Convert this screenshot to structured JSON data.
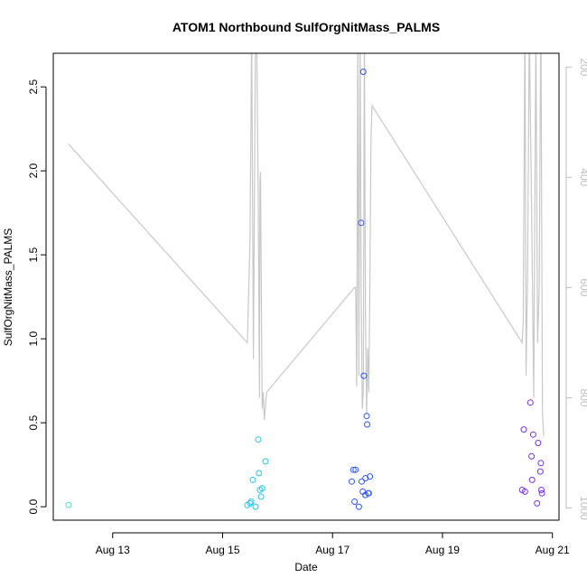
{
  "chart_data": {
    "type": "scatter",
    "title": "ATOM1 Northbound SulfOrgNitMass_PALMS",
    "xlabel": "Date",
    "ylabel": "SulfOrgNitMass_PALMS",
    "x_unit": "day of August 2016",
    "xlim": [
      11.92,
      21.12
    ],
    "ylim": [
      -0.08,
      2.7
    ],
    "x_ticks": [
      {
        "value": 13,
        "label": "Aug 13"
      },
      {
        "value": 15,
        "label": "Aug 15"
      },
      {
        "value": 17,
        "label": "Aug 17"
      },
      {
        "value": 19,
        "label": "Aug 19"
      },
      {
        "value": 21,
        "label": "Aug 21"
      }
    ],
    "y_ticks": [
      {
        "value": 0.0,
        "label": "0.0"
      },
      {
        "value": 0.5,
        "label": "0.5"
      },
      {
        "value": 1.0,
        "label": "1.0"
      },
      {
        "value": 1.5,
        "label": "1.5"
      },
      {
        "value": 2.0,
        "label": "2.0"
      },
      {
        "value": 2.5,
        "label": "2.5"
      }
    ],
    "secondary_axis": {
      "side": "right",
      "reversed": true,
      "range": [
        1022,
        175
      ],
      "color": "#bdbdbd",
      "ticks": [
        {
          "value": 200,
          "label": "200"
        },
        {
          "value": 400,
          "label": "400"
        },
        {
          "value": 600,
          "label": "600"
        },
        {
          "value": 800,
          "label": "800"
        },
        {
          "value": 1000,
          "label": "1000"
        }
      ]
    },
    "points": [
      {
        "x": 12.2,
        "y": 0.01,
        "color": "#3ce8c8"
      },
      {
        "x": 15.45,
        "y": 0.01,
        "color": "#21c7eb"
      },
      {
        "x": 15.5,
        "y": 0.02,
        "color": "#21c7eb"
      },
      {
        "x": 15.52,
        "y": 0.03,
        "color": "#21c7eb"
      },
      {
        "x": 15.55,
        "y": 0.16,
        "color": "#21c7eb"
      },
      {
        "x": 15.6,
        "y": 0.0,
        "color": "#21c7eb"
      },
      {
        "x": 15.65,
        "y": 0.4,
        "color": "#21c7eb"
      },
      {
        "x": 15.66,
        "y": 0.2,
        "color": "#21c7eb"
      },
      {
        "x": 15.68,
        "y": 0.1,
        "color": "#21c7eb"
      },
      {
        "x": 15.7,
        "y": 0.06,
        "color": "#21c7eb"
      },
      {
        "x": 15.72,
        "y": 0.11,
        "color": "#21c7eb"
      },
      {
        "x": 15.78,
        "y": 0.27,
        "color": "#21c7eb"
      },
      {
        "x": 17.35,
        "y": 0.15,
        "color": "#2f57f0"
      },
      {
        "x": 17.38,
        "y": 0.22,
        "color": "#2f57f0"
      },
      {
        "x": 17.4,
        "y": 0.03,
        "color": "#2f57f0"
      },
      {
        "x": 17.42,
        "y": 0.22,
        "color": "#2f57f0"
      },
      {
        "x": 17.48,
        "y": 0.0,
        "color": "#2f57f0"
      },
      {
        "x": 17.52,
        "y": 1.69,
        "color": "#2f57f0"
      },
      {
        "x": 17.53,
        "y": 0.15,
        "color": "#2f57f0"
      },
      {
        "x": 17.55,
        "y": 0.09,
        "color": "#2f57f0"
      },
      {
        "x": 17.56,
        "y": 2.59,
        "color": "#2f57f0"
      },
      {
        "x": 17.57,
        "y": 0.78,
        "color": "#2f57f0"
      },
      {
        "x": 17.6,
        "y": 0.07,
        "color": "#2f57f0"
      },
      {
        "x": 17.6,
        "y": 0.17,
        "color": "#2f57f0"
      },
      {
        "x": 17.62,
        "y": 0.54,
        "color": "#2f57f0"
      },
      {
        "x": 17.63,
        "y": 0.49,
        "color": "#2f57f0"
      },
      {
        "x": 17.65,
        "y": 0.08,
        "color": "#2f57f0"
      },
      {
        "x": 17.66,
        "y": 0.08,
        "color": "#2f57f0"
      },
      {
        "x": 17.68,
        "y": 0.18,
        "color": "#2f57f0"
      },
      {
        "x": 20.45,
        "y": 0.1,
        "color": "#7a2ee8"
      },
      {
        "x": 20.48,
        "y": 0.46,
        "color": "#7a2ee8"
      },
      {
        "x": 20.5,
        "y": 0.09,
        "color": "#7a2ee8"
      },
      {
        "x": 20.6,
        "y": 0.62,
        "color": "#7a2ee8"
      },
      {
        "x": 20.62,
        "y": 0.3,
        "color": "#7a2ee8"
      },
      {
        "x": 20.63,
        "y": 0.16,
        "color": "#7a2ee8"
      },
      {
        "x": 20.65,
        "y": 0.43,
        "color": "#7a2ee8"
      },
      {
        "x": 20.72,
        "y": 0.02,
        "color": "#7a2ee8"
      },
      {
        "x": 20.74,
        "y": 0.38,
        "color": "#7a2ee8"
      },
      {
        "x": 20.78,
        "y": 0.21,
        "color": "#7a2ee8"
      },
      {
        "x": 20.79,
        "y": 0.26,
        "color": "#7a2ee8"
      },
      {
        "x": 20.8,
        "y": 0.1,
        "color": "#7a2ee8"
      },
      {
        "x": 20.81,
        "y": 0.08,
        "color": "#7a2ee8"
      }
    ],
    "pressure_line": {
      "color": "#c8c8c8",
      "x": [
        12.2,
        15.45,
        15.5,
        15.53,
        15.56,
        15.6,
        15.62,
        15.65,
        15.67,
        15.68,
        15.69,
        15.72,
        15.74,
        15.76,
        15.8,
        17.4,
        17.42,
        17.44,
        17.46,
        17.48,
        17.5,
        17.52,
        17.54,
        17.56,
        17.58,
        17.6,
        17.62,
        17.64,
        17.66,
        17.68,
        17.7,
        17.72,
        20.45,
        20.47,
        20.5,
        20.52,
        20.55,
        20.58,
        20.62,
        20.66,
        20.7,
        20.73,
        20.76,
        20.79,
        20.82,
        20.84
      ],
      "y": [
        340,
        700,
        510,
        130,
        730,
        120,
        130,
        450,
        800,
        410,
        390,
        820,
        790,
        840,
        790,
        600,
        600,
        780,
        130,
        760,
        120,
        600,
        820,
        790,
        130,
        650,
        830,
        710,
        790,
        590,
        330,
        270,
        700,
        660,
        110,
        760,
        560,
        130,
        450,
        800,
        130,
        700,
        600,
        90,
        830,
        870
      ]
    }
  }
}
